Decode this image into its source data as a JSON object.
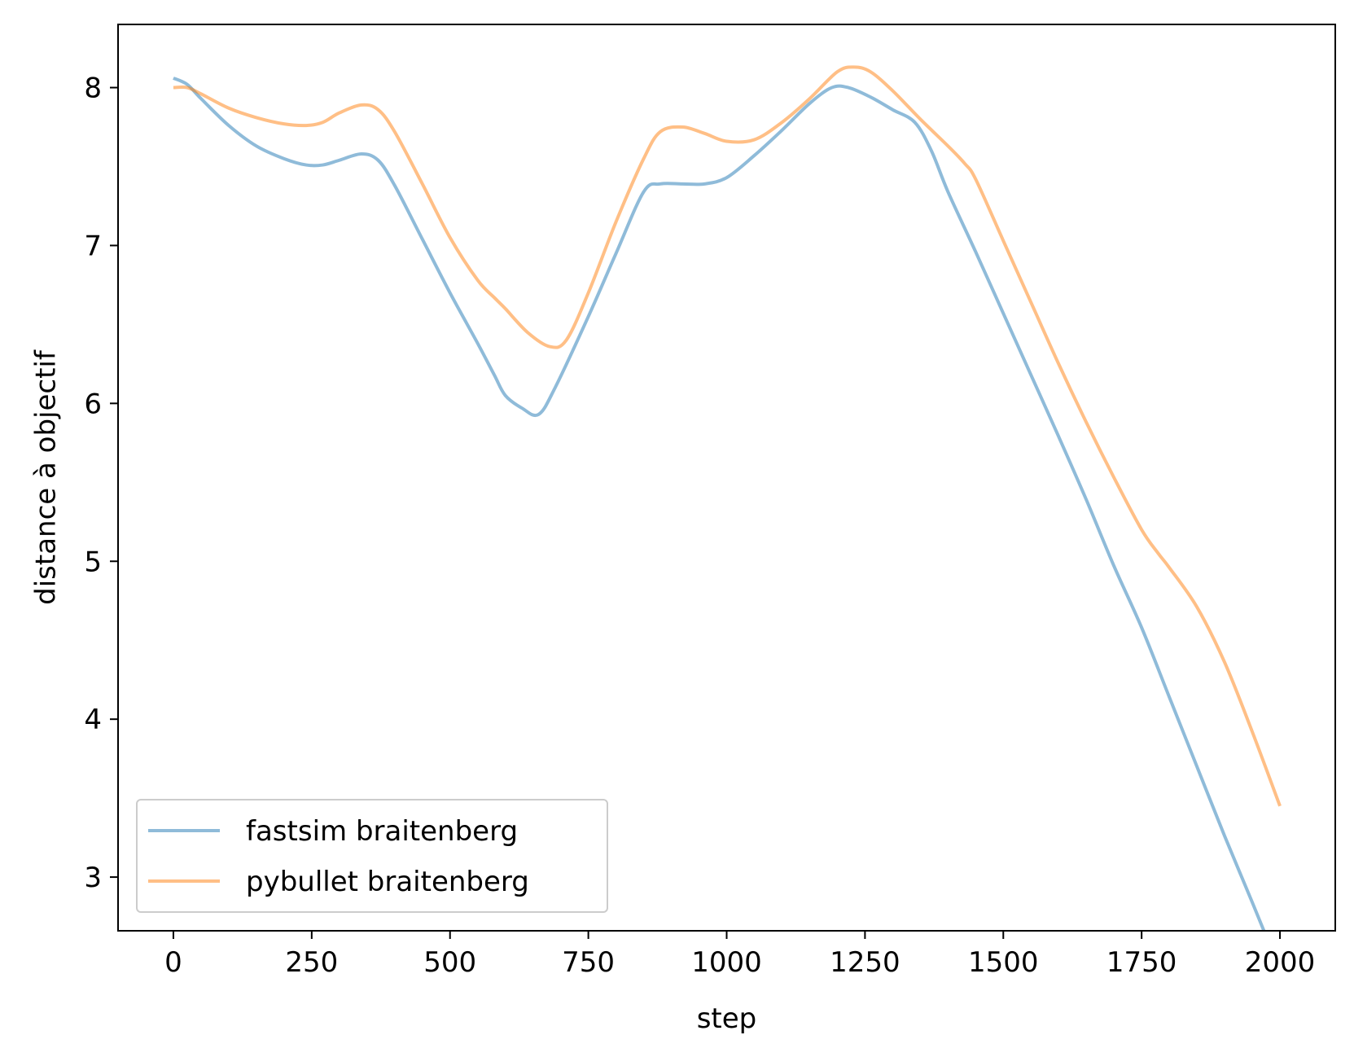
{
  "chart_data": {
    "type": "line",
    "title": "",
    "xlabel": "step",
    "ylabel": "distance à objectif",
    "xlim": [
      -100,
      2100
    ],
    "ylim": [
      2.66,
      8.4
    ],
    "xticks": [
      0,
      250,
      500,
      750,
      1000,
      1250,
      1500,
      1750,
      2000
    ],
    "yticks": [
      3,
      4,
      5,
      6,
      7,
      8
    ],
    "grid": false,
    "legend_position": "lower-left",
    "series": [
      {
        "name": "fastsim braitenberg",
        "color": "#1f77b4",
        "x": [
          0,
          25,
          50,
          100,
          150,
          200,
          240,
          270,
          300,
          340,
          370,
          400,
          450,
          500,
          550,
          580,
          600,
          630,
          660,
          690,
          750,
          800,
          850,
          880,
          920,
          960,
          1000,
          1050,
          1100,
          1150,
          1190,
          1220,
          1260,
          1300,
          1340,
          1370,
          1400,
          1450,
          1500,
          1550,
          1600,
          1650,
          1700,
          1750,
          1800,
          1850,
          1900,
          1950,
          2000
        ],
        "y": [
          8.06,
          8.02,
          7.93,
          7.76,
          7.63,
          7.55,
          7.51,
          7.51,
          7.54,
          7.58,
          7.54,
          7.38,
          7.04,
          6.7,
          6.38,
          6.18,
          6.05,
          5.97,
          5.93,
          6.1,
          6.55,
          6.95,
          7.34,
          7.39,
          7.39,
          7.39,
          7.43,
          7.57,
          7.73,
          7.9,
          8.0,
          8.0,
          7.94,
          7.86,
          7.78,
          7.6,
          7.34,
          6.96,
          6.57,
          6.18,
          5.79,
          5.39,
          4.97,
          4.58,
          4.14,
          3.7,
          3.26,
          2.84,
          2.41
        ]
      },
      {
        "name": "pybullet braitenberg",
        "color": "#ff7f0e",
        "x": [
          0,
          25,
          50,
          100,
          150,
          200,
          240,
          270,
          300,
          340,
          370,
          400,
          450,
          500,
          550,
          580,
          600,
          640,
          680,
          710,
          750,
          800,
          850,
          880,
          920,
          960,
          1000,
          1050,
          1100,
          1150,
          1200,
          1230,
          1260,
          1300,
          1350,
          1400,
          1430,
          1450,
          1500,
          1550,
          1600,
          1650,
          1700,
          1750,
          1780,
          1800,
          1850,
          1900,
          1950,
          2000
        ],
        "y": [
          8.0,
          8.0,
          7.96,
          7.87,
          7.81,
          7.77,
          7.76,
          7.78,
          7.84,
          7.89,
          7.86,
          7.72,
          7.39,
          7.05,
          6.78,
          6.67,
          6.6,
          6.45,
          6.36,
          6.4,
          6.7,
          7.15,
          7.55,
          7.72,
          7.75,
          7.71,
          7.66,
          7.67,
          7.78,
          7.93,
          8.1,
          8.13,
          8.1,
          7.98,
          7.8,
          7.63,
          7.52,
          7.42,
          7.03,
          6.64,
          6.25,
          5.88,
          5.53,
          5.2,
          5.05,
          4.96,
          4.71,
          4.36,
          3.92,
          3.45
        ]
      }
    ]
  }
}
